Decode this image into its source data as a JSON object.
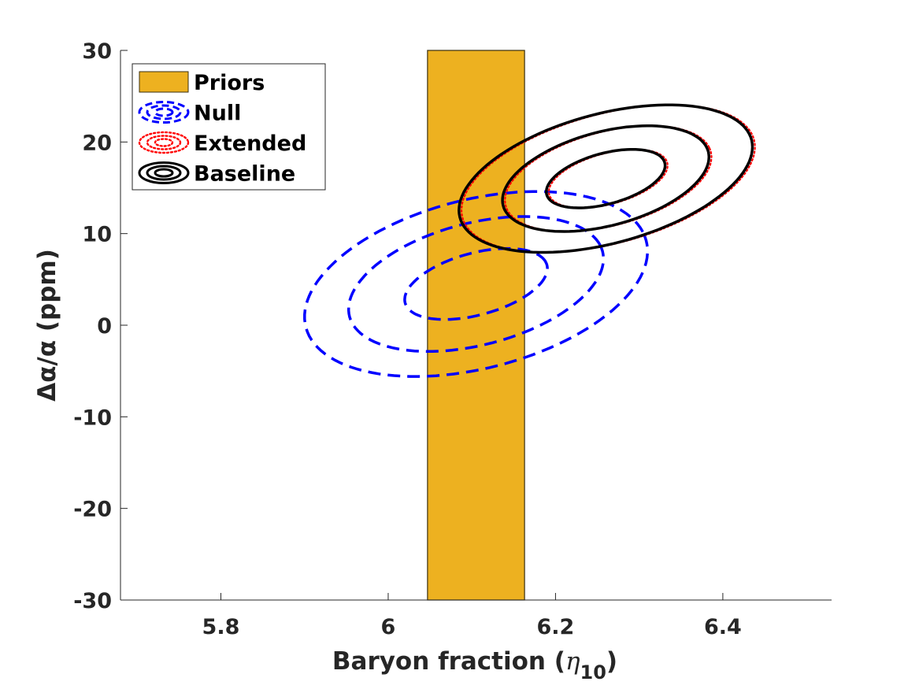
{
  "chart_data": {
    "type": "contour",
    "xlabel": "Baryon fraction (",
    "xlabel_symbol": "η",
    "xlabel_sub": "10",
    "xlabel_close": ")",
    "ylabel": "Δα/α (ppm)",
    "xlim": [
      5.68,
      6.53
    ],
    "ylim": [
      -30,
      30
    ],
    "x_ticks": [
      5.8,
      6.0,
      6.2,
      6.4
    ],
    "x_tick_labels": [
      "5.8",
      "6",
      "6.2",
      "6.4"
    ],
    "y_ticks": [
      30,
      20,
      10,
      0,
      -10,
      -20,
      -30
    ],
    "y_tick_labels": [
      "30",
      "20",
      "10",
      "0",
      "-10",
      "-20",
      "-30"
    ],
    "grid": false,
    "legend_position": "top-left",
    "prior_band": {
      "name": "Priors",
      "x_min": 6.047,
      "x_max": 6.163,
      "color": "#EDB120"
    },
    "series": [
      {
        "name": "Null",
        "color": "#0000FF",
        "style": "dashed",
        "center": [
          6.105,
          4.5
        ],
        "angle_deg": 22,
        "contours": [
          {
            "level": "1-sigma",
            "semi_axes": [
              0.09,
              3.3
            ]
          },
          {
            "level": "2-sigma",
            "semi_axes": [
              0.16,
              6.5
            ]
          },
          {
            "level": "3-sigma",
            "semi_axes": [
              0.215,
              9.0
            ]
          }
        ]
      },
      {
        "name": "Extended",
        "color": "#FF0000",
        "style": "dotted",
        "center": [
          6.263,
          16.0
        ],
        "angle_deg": 22,
        "contours": [
          {
            "level": "1-sigma",
            "semi_axes": [
              0.075,
              2.7
            ]
          },
          {
            "level": "2-sigma",
            "semi_axes": [
              0.13,
              5.0
            ]
          },
          {
            "level": "3-sigma",
            "semi_axes": [
              0.185,
              6.9
            ]
          }
        ]
      },
      {
        "name": "Baseline",
        "color": "#000000",
        "style": "solid",
        "center": [
          6.26,
          16.0
        ],
        "angle_deg": 22,
        "contours": [
          {
            "level": "1-sigma",
            "semi_axes": [
              0.075,
              2.7
            ]
          },
          {
            "level": "2-sigma",
            "semi_axes": [
              0.13,
              5.0
            ]
          },
          {
            "level": "3-sigma",
            "semi_axes": [
              0.185,
              6.9
            ]
          }
        ]
      }
    ]
  }
}
